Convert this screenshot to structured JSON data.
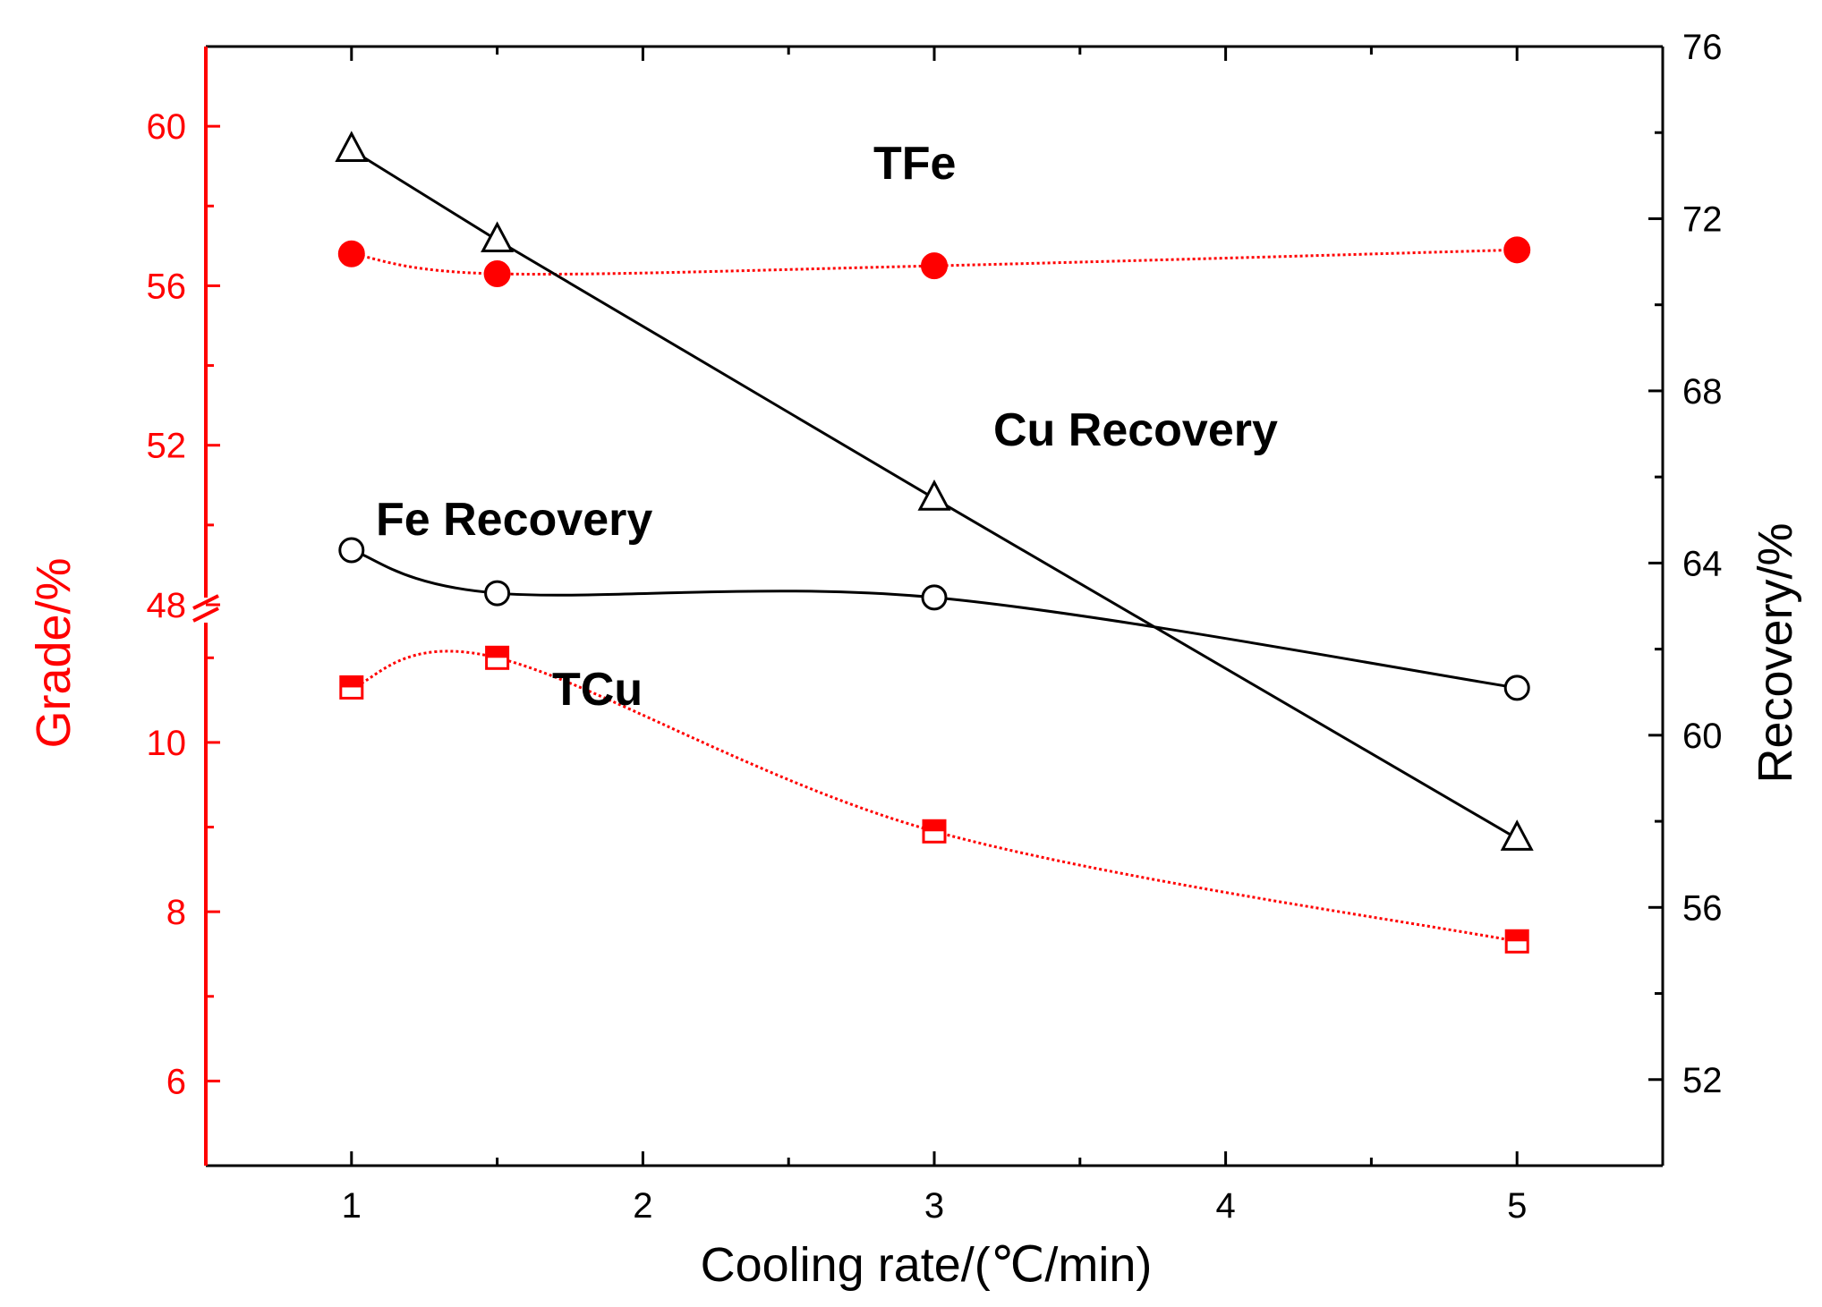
{
  "chart_data": {
    "type": "line",
    "title": "",
    "xlabel": "Cooling rate/(℃/min)",
    "ylabel_left": "Grade/%",
    "ylabel_right": "Recovery/%",
    "x": [
      1,
      1.5,
      3,
      5
    ],
    "x_ticks": [
      "1",
      "2",
      "3",
      "4",
      "5"
    ],
    "xlim": [
      0.5,
      5.5
    ],
    "left_axis": {
      "broken": true,
      "upper_range": [
        48,
        62
      ],
      "upper_ticks": [
        "48",
        "52",
        "56",
        "60"
      ],
      "lower_range": [
        5,
        11.5
      ],
      "lower_ticks": [
        "6",
        "8",
        "10"
      ]
    },
    "right_axis": {
      "range": [
        50,
        76
      ],
      "ticks": [
        "52",
        "56",
        "60",
        "64",
        "68",
        "72",
        "76"
      ]
    },
    "series": [
      {
        "name": "TFe",
        "axis": "left",
        "values": [
          56.8,
          56.3,
          56.5,
          56.9
        ],
        "marker": "filled-circle",
        "color": "#ff0000",
        "line": "dotted-smooth"
      },
      {
        "name": "TCu",
        "axis": "left",
        "values": [
          10.65,
          11.0,
          8.95,
          7.65
        ],
        "marker": "half-filled-square",
        "color": "#ff0000",
        "line": "dotted-smooth"
      },
      {
        "name": "Cu Recovery",
        "axis": "right",
        "values": [
          73.6,
          71.5,
          65.5,
          57.6
        ],
        "marker": "open-triangle",
        "color": "#000000",
        "line": "solid"
      },
      {
        "name": "Fe Recovery",
        "axis": "right",
        "values": [
          64.3,
          63.3,
          63.2,
          61.1
        ],
        "marker": "open-circle",
        "color": "#000000",
        "line": "solid-smooth"
      }
    ],
    "annotations": [
      "TFe",
      "Cu Recovery",
      "Fe Recovery",
      "TCu"
    ],
    "colors": {
      "left_axis": "#ff0000",
      "right_axis": "#000000",
      "grade": "#ff0000",
      "recovery": "#000000"
    },
    "grid": false,
    "legend": "none"
  }
}
